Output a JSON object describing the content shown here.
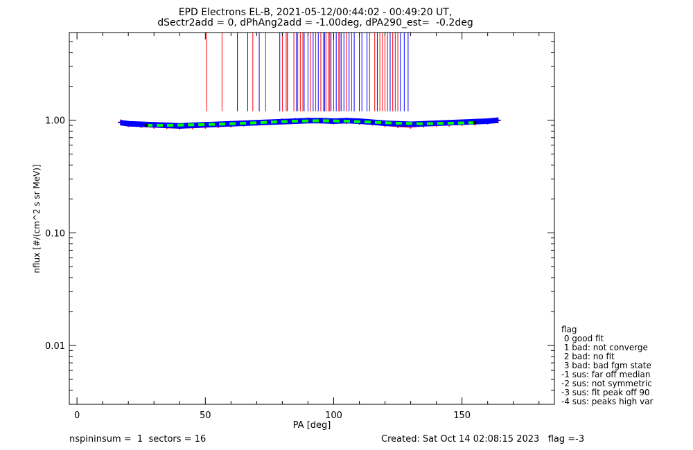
{
  "header": {
    "title_line1": "EPD Electrons EL-B, 2021-05-12/00:44:02 - 00:49:20 UT,",
    "title_line2": "dSectr2add = 0, dPhAng2add = -1.00deg, dPA290_est=  -0.2deg"
  },
  "legend": {
    "title": "flag",
    "items": [
      " 0 good fit",
      " 1 bad: not converge",
      " 2 bad: no fit",
      " 3 bad: bad fgm state",
      "-1 sus: far off median",
      "-2 sus: not symmetric",
      "-3 sus: fit peak off 90",
      "-4 sus: peaks high var"
    ]
  },
  "footer": {
    "left": "nspininsum =  1  sectors = 16",
    "right": "Created: Sat Oct 14 02:08:15 2023   flag =-3"
  },
  "colors": {
    "red": "#ff0000",
    "blue": "#0000ff",
    "green": "#00ff00",
    "black": "#000000"
  },
  "chart_data": {
    "type": "scatter",
    "xlabel": "PA [deg]",
    "ylabel": "nflux [#/(cm^2 s sr MeV)]",
    "xlim": [
      -3,
      186
    ],
    "ylim": [
      0.003,
      6
    ],
    "ylog": true,
    "xticks": [
      0,
      50,
      100,
      150
    ],
    "xtick_labels": [
      "0",
      "50",
      "100",
      "150"
    ],
    "yticks": [
      0.01,
      0.1,
      1.0
    ],
    "ytick_labels": [
      "0.01",
      "0.10",
      "1.00"
    ],
    "grid": false,
    "vertical_lines": {
      "y_range": [
        1.2,
        6
      ],
      "red_x": [
        50.5,
        56.5,
        68.5,
        73.5,
        80,
        81.5,
        84.5,
        86,
        87,
        88,
        91,
        93,
        95,
        96,
        97,
        98,
        99,
        100,
        102,
        103,
        105,
        107,
        114,
        116,
        118,
        119,
        120,
        121,
        123,
        124,
        125
      ],
      "blue_x": [
        62.5,
        66.5,
        71,
        79,
        82,
        85.5,
        88.5,
        90,
        92,
        94,
        96.5,
        98.5,
        101,
        102.5,
        104,
        106,
        108,
        110,
        111,
        113,
        117,
        122,
        126,
        127.5,
        129
      ]
    },
    "series": [
      {
        "color": "red",
        "x": [
          17,
          20,
          25,
          30,
          35,
          40,
          45,
          50,
          55,
          60,
          65,
          70,
          75,
          80,
          85,
          90,
          95,
          100,
          105,
          110,
          115,
          120,
          125,
          130,
          135,
          140,
          145,
          150,
          155,
          160,
          164
        ],
        "y": [
          0.96,
          0.92,
          0.9,
          0.89,
          0.88,
          0.87,
          0.88,
          0.89,
          0.9,
          0.91,
          0.93,
          0.95,
          0.96,
          0.98,
          0.99,
          1.0,
          0.99,
          0.97,
          0.98,
          0.96,
          0.95,
          0.92,
          0.9,
          0.89,
          0.91,
          0.92,
          0.93,
          0.94,
          0.95,
          0.97,
          0.99
        ]
      },
      {
        "color": "blue",
        "x": [
          17,
          20,
          25,
          30,
          35,
          40,
          45,
          50,
          55,
          60,
          65,
          70,
          75,
          80,
          85,
          90,
          95,
          100,
          105,
          110,
          115,
          120,
          125,
          130,
          135,
          140,
          145,
          150,
          155,
          160,
          164
        ],
        "y": [
          0.95,
          0.93,
          0.92,
          0.91,
          0.9,
          0.89,
          0.9,
          0.91,
          0.92,
          0.93,
          0.94,
          0.95,
          0.96,
          0.97,
          0.98,
          0.99,
          0.99,
          0.98,
          0.99,
          0.98,
          0.96,
          0.94,
          0.93,
          0.92,
          0.93,
          0.94,
          0.95,
          0.96,
          0.97,
          0.98,
          1.0
        ]
      },
      {
        "color": "green",
        "style": "dashed-fit",
        "x": [
          27,
          35,
          45,
          55,
          65,
          75,
          85,
          95,
          105,
          115,
          125,
          135,
          145,
          155
        ],
        "y": [
          0.9,
          0.9,
          0.91,
          0.92,
          0.94,
          0.96,
          0.98,
          0.99,
          0.98,
          0.96,
          0.94,
          0.93,
          0.94,
          0.95
        ]
      }
    ]
  }
}
